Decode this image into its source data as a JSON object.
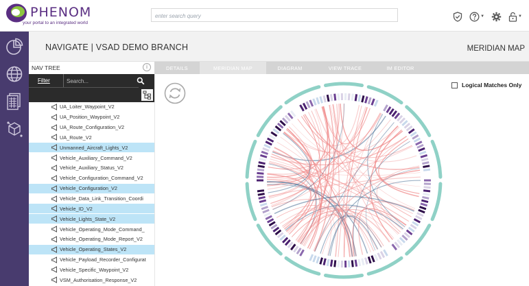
{
  "header": {
    "logo_word": "PHENOM",
    "logo_tagline": "your portal to an integrated world",
    "search_placeholder": "enter search query"
  },
  "navbar": {
    "title": "NAVIGATE |  VSAD DEMO BRANCH",
    "right_label": "MERIDIAN MAP"
  },
  "nav_tree": {
    "title": "NAV TREE",
    "filter_label": "Filter",
    "search_placeholder": "Search...",
    "items": [
      {
        "label": "UA_Loiter_Waypoint_V2",
        "selected": false
      },
      {
        "label": "UA_Position_Waypoint_V2",
        "selected": false
      },
      {
        "label": "UA_Route_Configuration_V2",
        "selected": false
      },
      {
        "label": "UA_Route_V2",
        "selected": false
      },
      {
        "label": "Unmanned_Aircraft_Lights_V2",
        "selected": true
      },
      {
        "label": "Vehicle_Auxiliary_Command_V2",
        "selected": false
      },
      {
        "label": "Vehicle_Auxiliary_Status_V2",
        "selected": false
      },
      {
        "label": "Vehicle_Configuration_Command_V2",
        "selected": false
      },
      {
        "label": "Vehicle_Configuration_V2",
        "selected": true
      },
      {
        "label": "Vehicle_Data_Link_Transition_Coordi",
        "selected": false
      },
      {
        "label": "Vehicle_ID_V2",
        "selected": true
      },
      {
        "label": "Vehicle_Lights_State_V2",
        "selected": true
      },
      {
        "label": "Vehicle_Operating_Mode_Command_",
        "selected": false
      },
      {
        "label": "Vehicle_Operating_Mode_Report_V2",
        "selected": false
      },
      {
        "label": "Vehicle_Operating_States_V2",
        "selected": true
      },
      {
        "label": "Vehicle_Payload_Recorder_Configurat",
        "selected": false
      },
      {
        "label": "Vehicle_Specific_Waypoint_V2",
        "selected": false
      },
      {
        "label": "VSM_Authorisation_Response_V2",
        "selected": false
      }
    ]
  },
  "tabs": [
    {
      "label": "DETAILS",
      "active": false
    },
    {
      "label": "MERIDIAN MAP",
      "active": true
    },
    {
      "label": "DIAGRAM",
      "active": false
    },
    {
      "label": "VIEW TRACE",
      "active": false
    },
    {
      "label": "IM EDITOR",
      "active": false
    }
  ],
  "meridian": {
    "logical_matches_label": "Logical Matches Only",
    "logical_matches_checked": false
  },
  "icons": {
    "rail": [
      "pie-chart-icon",
      "globe-icon",
      "document-grid-icon",
      "cube-network-icon"
    ],
    "header": [
      "shield-check-icon",
      "help-icon",
      "gear-icon",
      "lock-icon"
    ]
  },
  "colors": {
    "brand_purple": "#5a2e82",
    "brand_green": "#8dc63f",
    "rail": "#483b6e",
    "selection": "#bde4f7",
    "ring_teal": "#8fd1c6",
    "chord_red": "#f08a8a",
    "chord_blue": "#4a6f95"
  }
}
